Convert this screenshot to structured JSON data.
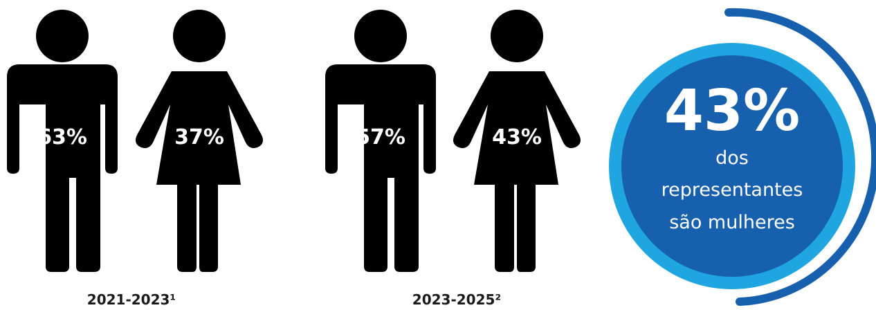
{
  "colors": {
    "figure_dark": "#000000",
    "fill_blue": "#28b4ea",
    "circle_inner": "#1760ad",
    "circle_ring": "#1fa6e0",
    "outer_arc": "#1760ad"
  },
  "groups": [
    {
      "period": "2021-2023¹",
      "man": {
        "icon": "man-icon",
        "percent_label": "63%",
        "fill_fraction": 0.63
      },
      "woman": {
        "icon": "woman-icon",
        "percent_label": "37%",
        "fill_fraction": 0.37
      }
    },
    {
      "period": "2023-2025²",
      "man": {
        "icon": "man-icon",
        "percent_label": "57%",
        "fill_fraction": 0.57
      },
      "woman": {
        "icon": "woman-icon",
        "percent_label": "43%",
        "fill_fraction": 0.43
      }
    }
  ],
  "highlight": {
    "value": "43%",
    "line1": "dos",
    "line2": "representantes",
    "line3": "são mulheres"
  }
}
